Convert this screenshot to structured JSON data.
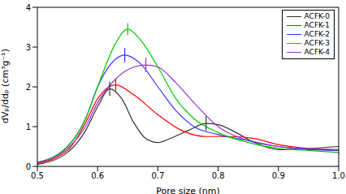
{
  "chart_data": {
    "type": "line",
    "xlabel": "Pore size (nm)",
    "ylabel": "dVₚ/ddₚ (cm³g⁻¹)",
    "xlim": [
      0.5,
      1.0
    ],
    "xticks": [
      0.5,
      0.6,
      0.7,
      0.8,
      0.9,
      {
        "value": 1.0,
        "label": "1.0"
      }
    ],
    "ylim": [
      0,
      4
    ],
    "yticks": [
      0,
      1,
      2,
      3,
      4
    ],
    "legend": "upper right",
    "series": [
      {
        "name": "ACFK-0",
        "color": "#333333",
        "x": [
          0.5,
          0.55,
          0.58,
          0.6,
          0.62,
          0.64,
          0.66,
          0.68,
          0.7,
          0.72,
          0.75,
          0.78,
          0.8,
          0.83,
          0.86,
          0.9,
          0.95,
          1.0
        ],
        "values": [
          0.05,
          0.35,
          0.9,
          1.5,
          1.95,
          1.7,
          1.1,
          0.7,
          0.6,
          0.7,
          0.9,
          1.08,
          1.05,
          0.85,
          0.6,
          0.42,
          0.45,
          0.5
        ],
        "error_bars": [
          [
            0.62,
            1.95,
            0.18
          ],
          [
            0.78,
            1.08,
            0.18
          ]
        ]
      },
      {
        "name": "ACFK-1",
        "color": "#ff0000",
        "x": [
          0.5,
          0.55,
          0.58,
          0.6,
          0.63,
          0.66,
          0.7,
          0.74,
          0.78,
          0.82,
          0.86,
          0.9,
          0.95,
          1.0
        ],
        "values": [
          0.08,
          0.4,
          1.1,
          1.7,
          2.05,
          1.8,
          1.3,
          0.9,
          0.75,
          0.75,
          0.7,
          0.55,
          0.45,
          0.4
        ],
        "error_bars": [
          [
            0.63,
            2.05,
            0.15
          ]
        ]
      },
      {
        "name": "ACFK-2",
        "color": "#3333ff",
        "x": [
          0.5,
          0.55,
          0.58,
          0.6,
          0.63,
          0.645,
          0.67,
          0.7,
          0.73,
          0.76,
          0.8,
          0.85,
          0.9,
          0.95,
          1.0
        ],
        "values": [
          0.1,
          0.5,
          1.2,
          2.0,
          2.7,
          2.8,
          2.6,
          2.0,
          1.4,
          1.0,
          0.8,
          0.65,
          0.5,
          0.42,
          0.4
        ],
        "error_bars": [
          [
            0.645,
            2.8,
            0.18
          ]
        ]
      },
      {
        "name": "ACFK-3",
        "color": "#00cc00",
        "x": [
          0.5,
          0.55,
          0.58,
          0.6,
          0.63,
          0.65,
          0.67,
          0.7,
          0.73,
          0.76,
          0.8,
          0.85,
          0.9,
          0.95,
          1.0
        ],
        "values": [
          0.1,
          0.5,
          1.2,
          2.0,
          3.1,
          3.45,
          3.2,
          2.5,
          1.7,
          1.2,
          0.85,
          0.6,
          0.45,
          0.4,
          0.35
        ],
        "error_bars": [
          [
            0.65,
            3.45,
            0.15
          ]
        ]
      },
      {
        "name": "ACFK-4",
        "color": "#9933cc",
        "x": [
          0.5,
          0.55,
          0.58,
          0.6,
          0.63,
          0.66,
          0.68,
          0.7,
          0.73,
          0.76,
          0.8,
          0.85,
          0.9,
          0.95,
          1.0
        ],
        "values": [
          0.1,
          0.45,
          1.0,
          1.6,
          2.2,
          2.5,
          2.55,
          2.5,
          2.1,
          1.6,
          1.0,
          0.65,
          0.5,
          0.45,
          0.42
        ],
        "error_bars": [
          [
            0.68,
            2.55,
            0.18
          ]
        ]
      }
    ]
  }
}
